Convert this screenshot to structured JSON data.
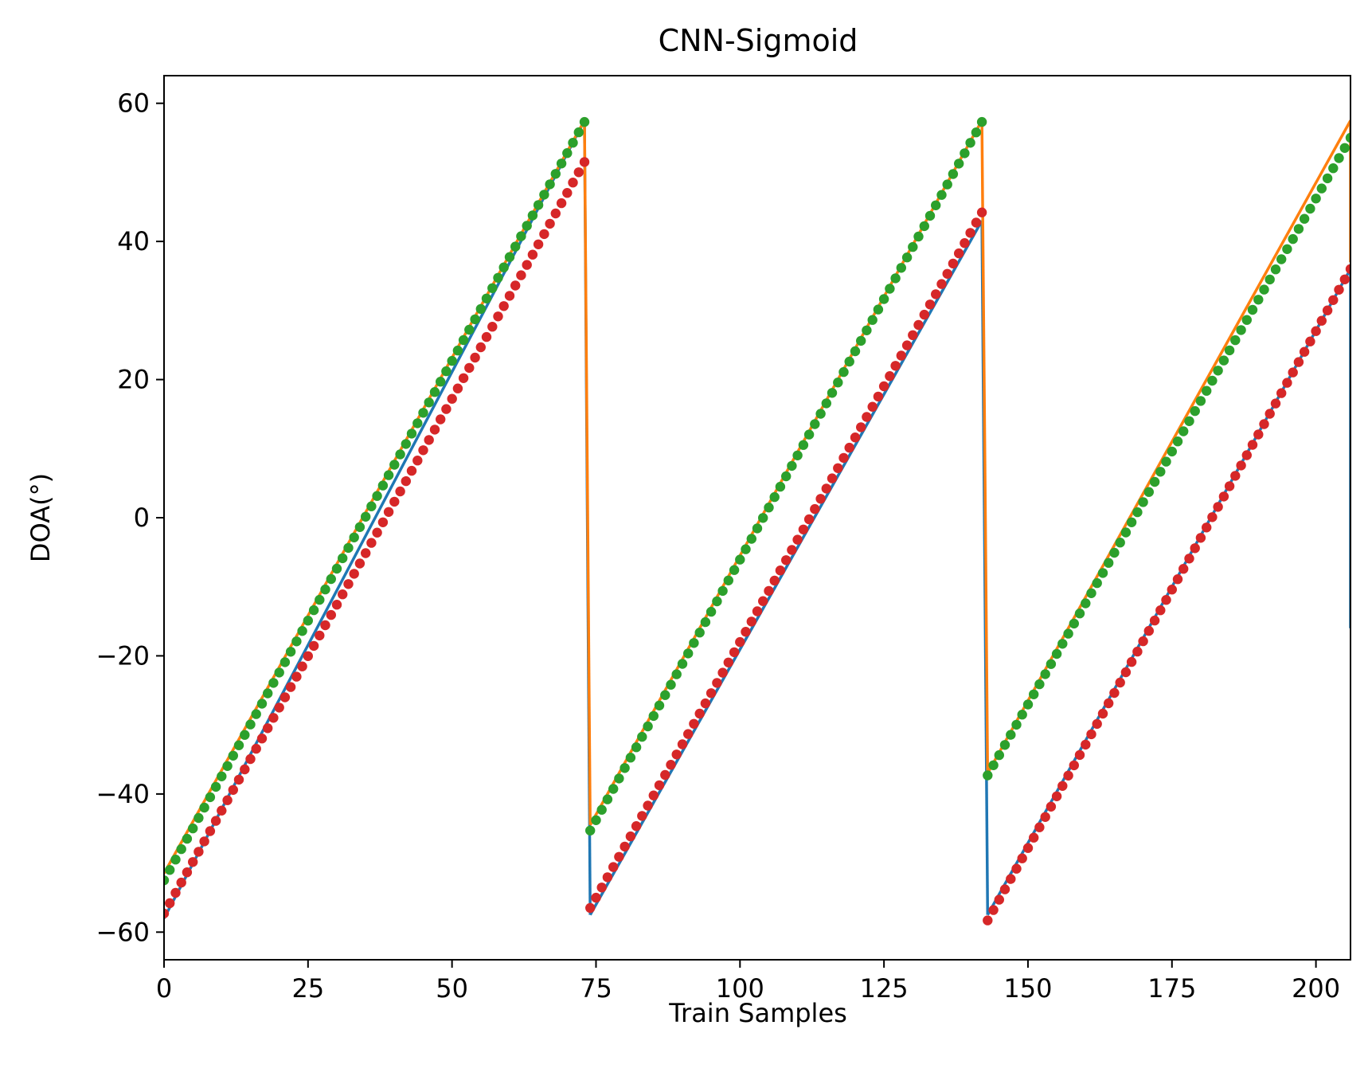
{
  "chart_data": {
    "type": "line",
    "title": "CNN-Sigmoid",
    "xlabel": "Train Samples",
    "ylabel": "DOA(°)",
    "xlim": [
      0,
      206
    ],
    "ylim": [
      -64,
      64
    ],
    "xticks": [
      0,
      25,
      50,
      75,
      100,
      125,
      150,
      175,
      200
    ],
    "yticks": [
      -60,
      -40,
      -20,
      0,
      20,
      40,
      60
    ],
    "grid": false,
    "legend": "none",
    "segment_starts": [
      0,
      74,
      143
    ],
    "series": [
      {
        "color": "#1f77b4",
        "style": "line",
        "segments": [
          {
            "x": [
              0,
              73
            ],
            "y": [
              -58,
              57.5
            ]
          },
          {
            "x": [
              73,
              74
            ],
            "y": [
              57.5,
              -57.5
            ]
          },
          {
            "x": [
              74,
              142
            ],
            "y": [
              -57.5,
              43
            ]
          },
          {
            "x": [
              142,
              143
            ],
            "y": [
              43,
              -57.5
            ]
          },
          {
            "x": [
              143,
              206
            ],
            "y": [
              -57.5,
              36
            ]
          },
          {
            "x": [
              206,
              206
            ],
            "y": [
              36,
              -16
            ]
          }
        ]
      },
      {
        "color": "#ff7f0e",
        "style": "line",
        "segments": [
          {
            "x": [
              0,
              73
            ],
            "y": [
              -51.5,
              57.5
            ]
          },
          {
            "x": [
              73,
              74
            ],
            "y": [
              57.5,
              -44.5
            ]
          },
          {
            "x": [
              74,
              142
            ],
            "y": [
              -44.5,
              57.5
            ]
          },
          {
            "x": [
              142,
              143
            ],
            "y": [
              57.5,
              -37
            ]
          },
          {
            "x": [
              143,
              206
            ],
            "y": [
              -37,
              57.5
            ]
          },
          {
            "x": [
              206,
              206
            ],
            "y": [
              57.5,
              37
            ]
          }
        ]
      },
      {
        "color": "#2ca02c",
        "style": "markers",
        "segments": [
          {
            "x0": 0,
            "x1": 73,
            "y0": -52.5,
            "y1": 57.3
          },
          {
            "x0": 74,
            "x1": 142,
            "y0": -45.3,
            "y1": 57.3
          },
          {
            "x0": 143,
            "x1": 206,
            "y0": -37.3,
            "y1": 55
          }
        ]
      },
      {
        "color": "#d62728",
        "style": "markers",
        "segments": [
          {
            "x0": 0,
            "x1": 73,
            "y0": -57.3,
            "y1": 51.5
          },
          {
            "x0": 74,
            "x1": 142,
            "y0": -56.5,
            "y1": 44.2
          },
          {
            "x0": 143,
            "x1": 206,
            "y0": -58.3,
            "y1": 36
          }
        ]
      }
    ]
  }
}
